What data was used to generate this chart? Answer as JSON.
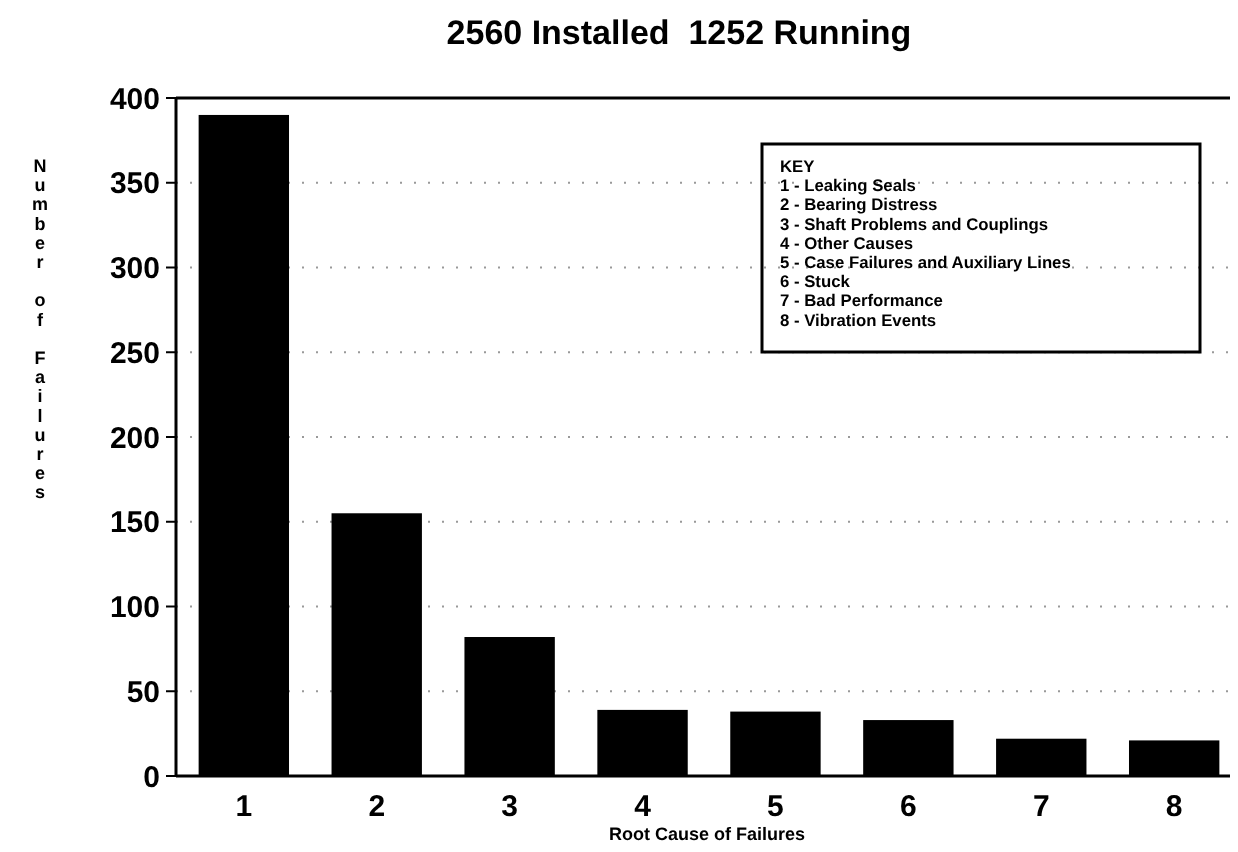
{
  "chart_data": {
    "type": "bar",
    "title": "2560 Installed  1252 Running",
    "xlabel": "Root Cause of Failures",
    "ylabel": "Number of Failures",
    "categories": [
      "1",
      "2",
      "3",
      "4",
      "5",
      "6",
      "7",
      "8"
    ],
    "values": [
      390,
      155,
      82,
      39,
      38,
      33,
      22,
      21
    ],
    "color": "#000000",
    "ylim": [
      0,
      400
    ],
    "yticks": [
      0,
      50,
      100,
      150,
      200,
      250,
      300,
      350,
      400
    ],
    "grid": "y",
    "annotations": [
      "KEY",
      "1 - Leaking Seals",
      "2 - Bearing Distress",
      "3 - Shaft Problems and Couplings",
      "4 - Other Causes",
      "5 - Case Failures and Auxiliary Lines",
      "6 - Stuck",
      "7 - Bad Performance",
      "8 - Vibration Events"
    ]
  }
}
